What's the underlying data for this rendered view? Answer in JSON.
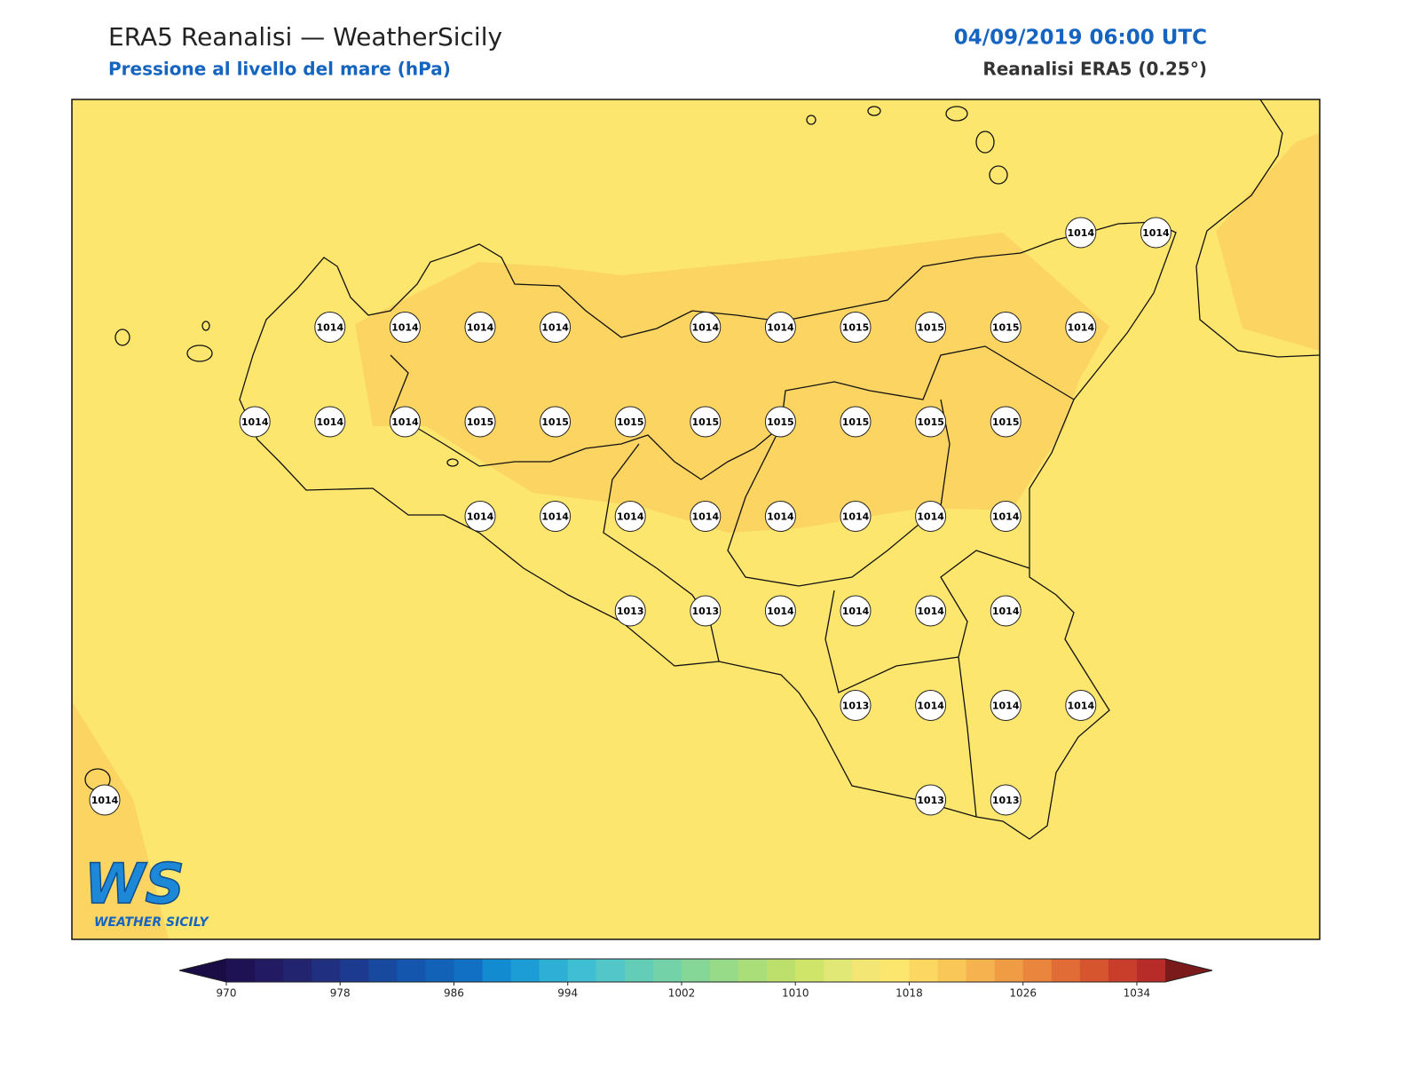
{
  "header": {
    "title": "ERA5 Reanalisi — WeatherSicily",
    "subtitle": "Pressione al livello del mare (hPa)",
    "datetime": "04/09/2019 06:00 UTC",
    "source": "Reanalisi ERA5 (0.25°)"
  },
  "map": {
    "background": "#fde66e",
    "high_fill": "#fbd462",
    "stations": [
      [
        null,
        null,
        null,
        null,
        null,
        null,
        null,
        null,
        null,
        null,
        null,
        null,
        null,
        1014,
        1014
      ],
      [
        null,
        null,
        null,
        1014,
        1014,
        1014,
        1014,
        null,
        1014,
        1014,
        1015,
        1015,
        1015,
        1014,
        null
      ],
      [
        null,
        null,
        1014,
        1014,
        1014,
        1015,
        1015,
        1015,
        1015,
        1015,
        1015,
        1015,
        1015,
        null,
        null
      ],
      [
        null,
        null,
        null,
        null,
        null,
        1014,
        1014,
        1014,
        1014,
        1014,
        1014,
        1014,
        1014,
        null,
        null
      ],
      [
        null,
        null,
        null,
        null,
        null,
        null,
        null,
        1013,
        1013,
        1014,
        1014,
        1014,
        1014,
        null,
        null
      ],
      [
        null,
        null,
        null,
        null,
        null,
        null,
        null,
        null,
        null,
        null,
        1013,
        1014,
        1014,
        1014,
        null
      ],
      [
        1014,
        null,
        null,
        null,
        null,
        null,
        null,
        null,
        null,
        null,
        null,
        1013,
        1013,
        null,
        null
      ]
    ]
  },
  "logo": {
    "mark": "WS",
    "text": "WEATHER SICILY"
  },
  "colorbar": {
    "clim": [
      970,
      1036
    ],
    "ticks": [
      970,
      978,
      986,
      994,
      1002,
      1010,
      1018,
      1026,
      1034
    ],
    "under": "#1a0d45",
    "over": "#7a1a1a",
    "colors": [
      "#1e1255",
      "#221a63",
      "#232470",
      "#202f80",
      "#1b3a90",
      "#174a9f",
      "#1456ad",
      "#1262b8",
      "#1170c4",
      "#128bd0",
      "#1d9dd6",
      "#2eb0d6",
      "#40bed4",
      "#52c6c8",
      "#63cdb7",
      "#73d2a7",
      "#85d798",
      "#97da87",
      "#a9de78",
      "#bce06b",
      "#cfe56a",
      "#e2e875",
      "#f3e674",
      "#fde66e",
      "#fcd762",
      "#f9c658",
      "#f5b24e",
      "#f09c45",
      "#ea853d",
      "#e16c35",
      "#d6552f",
      "#c93e2b",
      "#b72c28"
    ]
  }
}
